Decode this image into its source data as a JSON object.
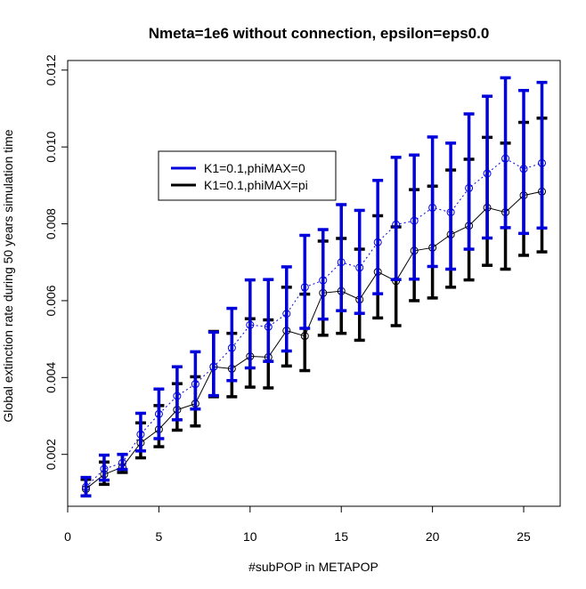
{
  "chart_data": {
    "type": "line",
    "title": "Nmeta=1e6 without connection, epsilon=eps0.0",
    "xlabel": "#subPOP in METAPOP",
    "ylabel": "Global extinction rate during 50 years simulation time",
    "xlim": [
      0,
      27
    ],
    "ylim": [
      0.00065,
      0.01225
    ],
    "x_ticks": [
      0,
      5,
      10,
      15,
      20,
      25
    ],
    "y_ticks": [
      0.002,
      0.004,
      0.006,
      0.008,
      0.01,
      0.012
    ],
    "y_tick_labels": [
      "0.002",
      "0.004",
      "0.006",
      "0.008",
      "0.010",
      "0.012"
    ],
    "grid": false,
    "legend_position": "center-left",
    "x": [
      1,
      2,
      3,
      4,
      5,
      6,
      7,
      8,
      9,
      10,
      11,
      12,
      13,
      14,
      15,
      16,
      17,
      18,
      19,
      20,
      21,
      22,
      23,
      24,
      25,
      26
    ],
    "series": [
      {
        "name": "K1=0.1,phiMAX=0",
        "color": "#0000dd",
        "line_style": "dashed",
        "mean": [
          0.00115,
          0.00162,
          0.00178,
          0.00252,
          0.00305,
          0.00352,
          0.00383,
          0.00428,
          0.00477,
          0.00537,
          0.00532,
          0.00566,
          0.00635,
          0.00653,
          0.007,
          0.00686,
          0.00752,
          0.00798,
          0.00808,
          0.00842,
          0.0083,
          0.00893,
          0.00931,
          0.0097,
          0.00943,
          0.00958
        ],
        "lower": [
          0.00092,
          0.00133,
          0.00161,
          0.00209,
          0.00241,
          0.0029,
          0.00318,
          0.00353,
          0.00392,
          0.00425,
          0.00442,
          0.00469,
          0.00528,
          0.00552,
          0.00574,
          0.00567,
          0.00618,
          0.00655,
          0.00656,
          0.00689,
          0.00682,
          0.00734,
          0.00763,
          0.0079,
          0.00775,
          0.00789
        ],
        "upper": [
          0.0014,
          0.00198,
          0.002,
          0.00307,
          0.0037,
          0.00428,
          0.00467,
          0.00518,
          0.0058,
          0.00654,
          0.00655,
          0.00688,
          0.0077,
          0.00785,
          0.0085,
          0.00835,
          0.00913,
          0.00973,
          0.00979,
          0.01026,
          0.0101,
          0.01086,
          0.01132,
          0.0118,
          0.01147,
          0.01168
        ]
      },
      {
        "name": "K1=0.1,phiMAX=pi",
        "color": "#000000",
        "line_style": "solid",
        "mean": [
          0.0011,
          0.00148,
          0.00167,
          0.0023,
          0.00265,
          0.00316,
          0.00332,
          0.00428,
          0.00423,
          0.00455,
          0.00453,
          0.00522,
          0.00508,
          0.0062,
          0.00625,
          0.00603,
          0.00675,
          0.00651,
          0.0073,
          0.00738,
          0.00772,
          0.00795,
          0.00842,
          0.0083,
          0.00874,
          0.00884
        ],
        "lower": [
          0.00092,
          0.00122,
          0.00153,
          0.00191,
          0.0022,
          0.00263,
          0.00274,
          0.0035,
          0.0035,
          0.00375,
          0.00373,
          0.0043,
          0.00418,
          0.0051,
          0.00515,
          0.00497,
          0.00555,
          0.00535,
          0.006,
          0.00607,
          0.00635,
          0.00654,
          0.00692,
          0.00682,
          0.00718,
          0.00727
        ],
        "upper": [
          0.00135,
          0.0018,
          0.002,
          0.00282,
          0.00327,
          0.00384,
          0.00402,
          0.0052,
          0.00515,
          0.00553,
          0.0055,
          0.00635,
          0.00617,
          0.00755,
          0.00762,
          0.00734,
          0.00821,
          0.00792,
          0.00889,
          0.00898,
          0.0094,
          0.00968,
          0.01025,
          0.0101,
          0.01064,
          0.01075
        ]
      }
    ]
  }
}
